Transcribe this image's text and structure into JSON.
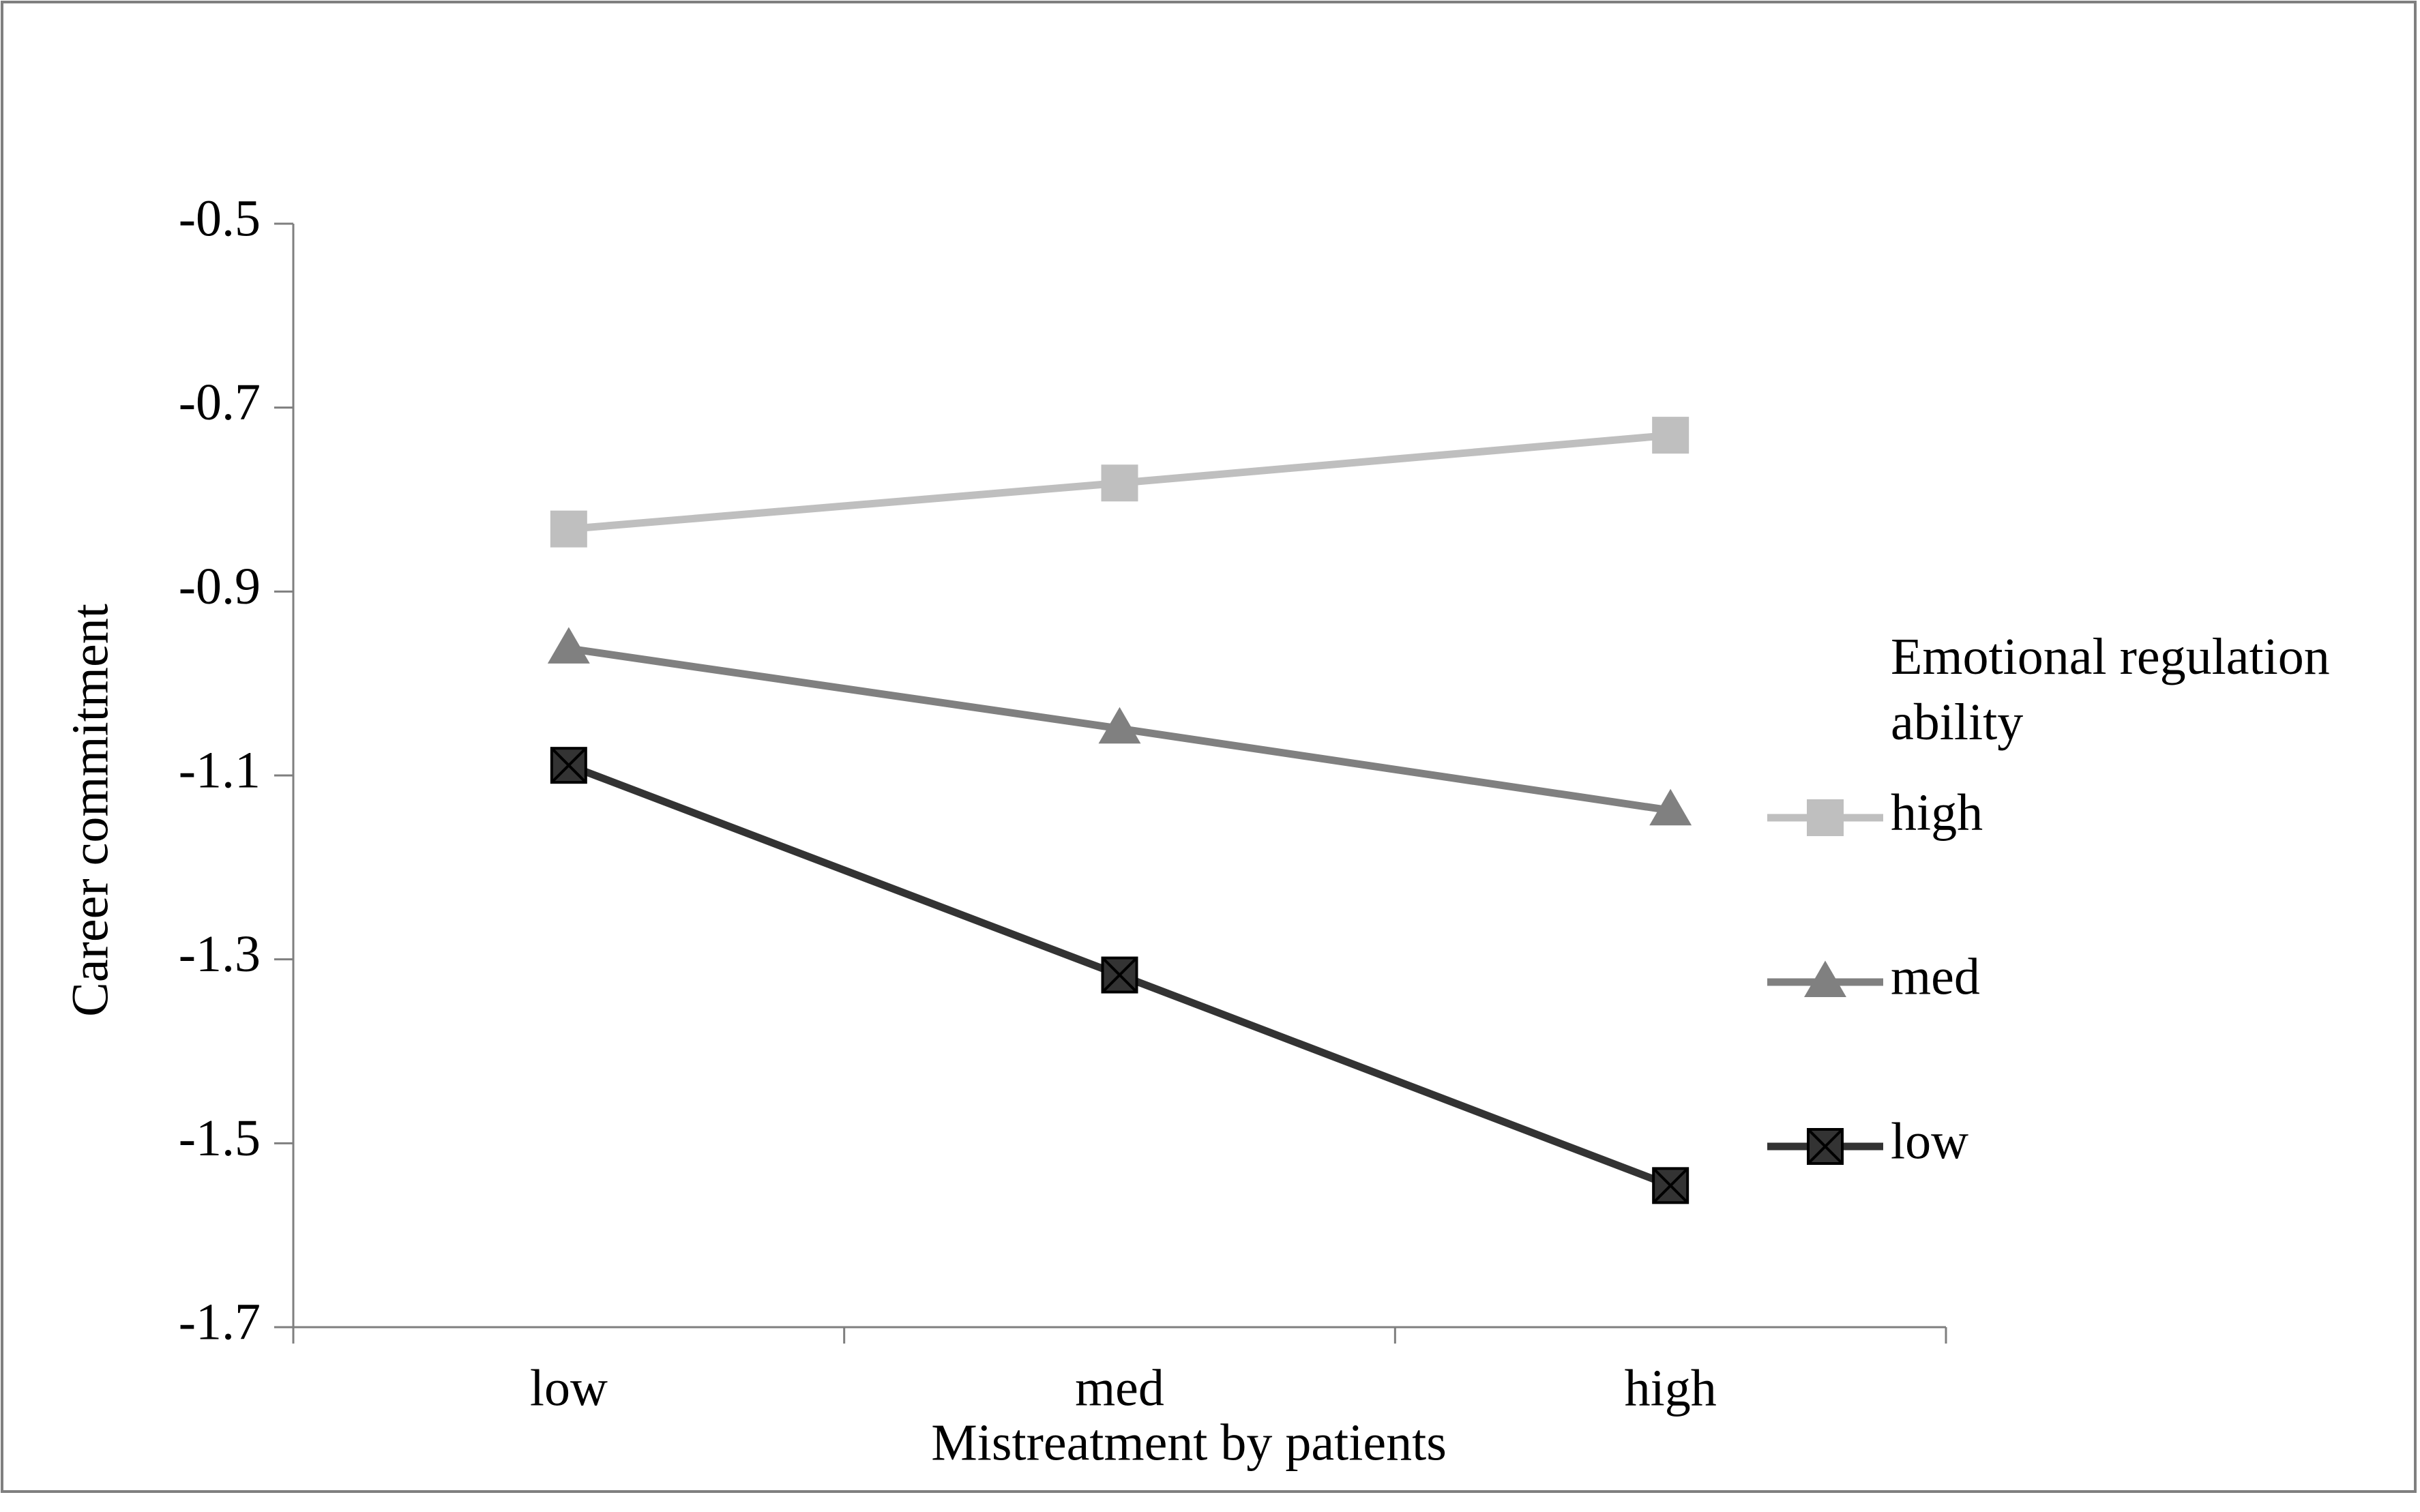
{
  "chart_data": {
    "type": "line",
    "x_label": "Mistreatment by patients",
    "y_label": "Career commitment",
    "legend_title": "Emotional regulation ability",
    "categories": [
      "low",
      "med",
      "high"
    ],
    "series": [
      {
        "name": "high",
        "color": "#bfbfbf",
        "marker": "square",
        "values": [
          -0.832,
          -0.782,
          -0.73
        ]
      },
      {
        "name": "med",
        "color": "#808080",
        "marker": "triangle",
        "values": [
          -0.962,
          -1.049,
          -1.138
        ]
      },
      {
        "name": "low",
        "color": "#333333",
        "marker": "x-square",
        "values": [
          -1.089,
          -1.317,
          -1.546
        ]
      }
    ],
    "ylim": [
      -1.7,
      -0.5
    ],
    "yticks": [
      -1.7,
      -1.5,
      -1.3,
      -1.1,
      -0.9,
      -0.7,
      -0.5
    ],
    "grid": false,
    "legend": "right"
  }
}
